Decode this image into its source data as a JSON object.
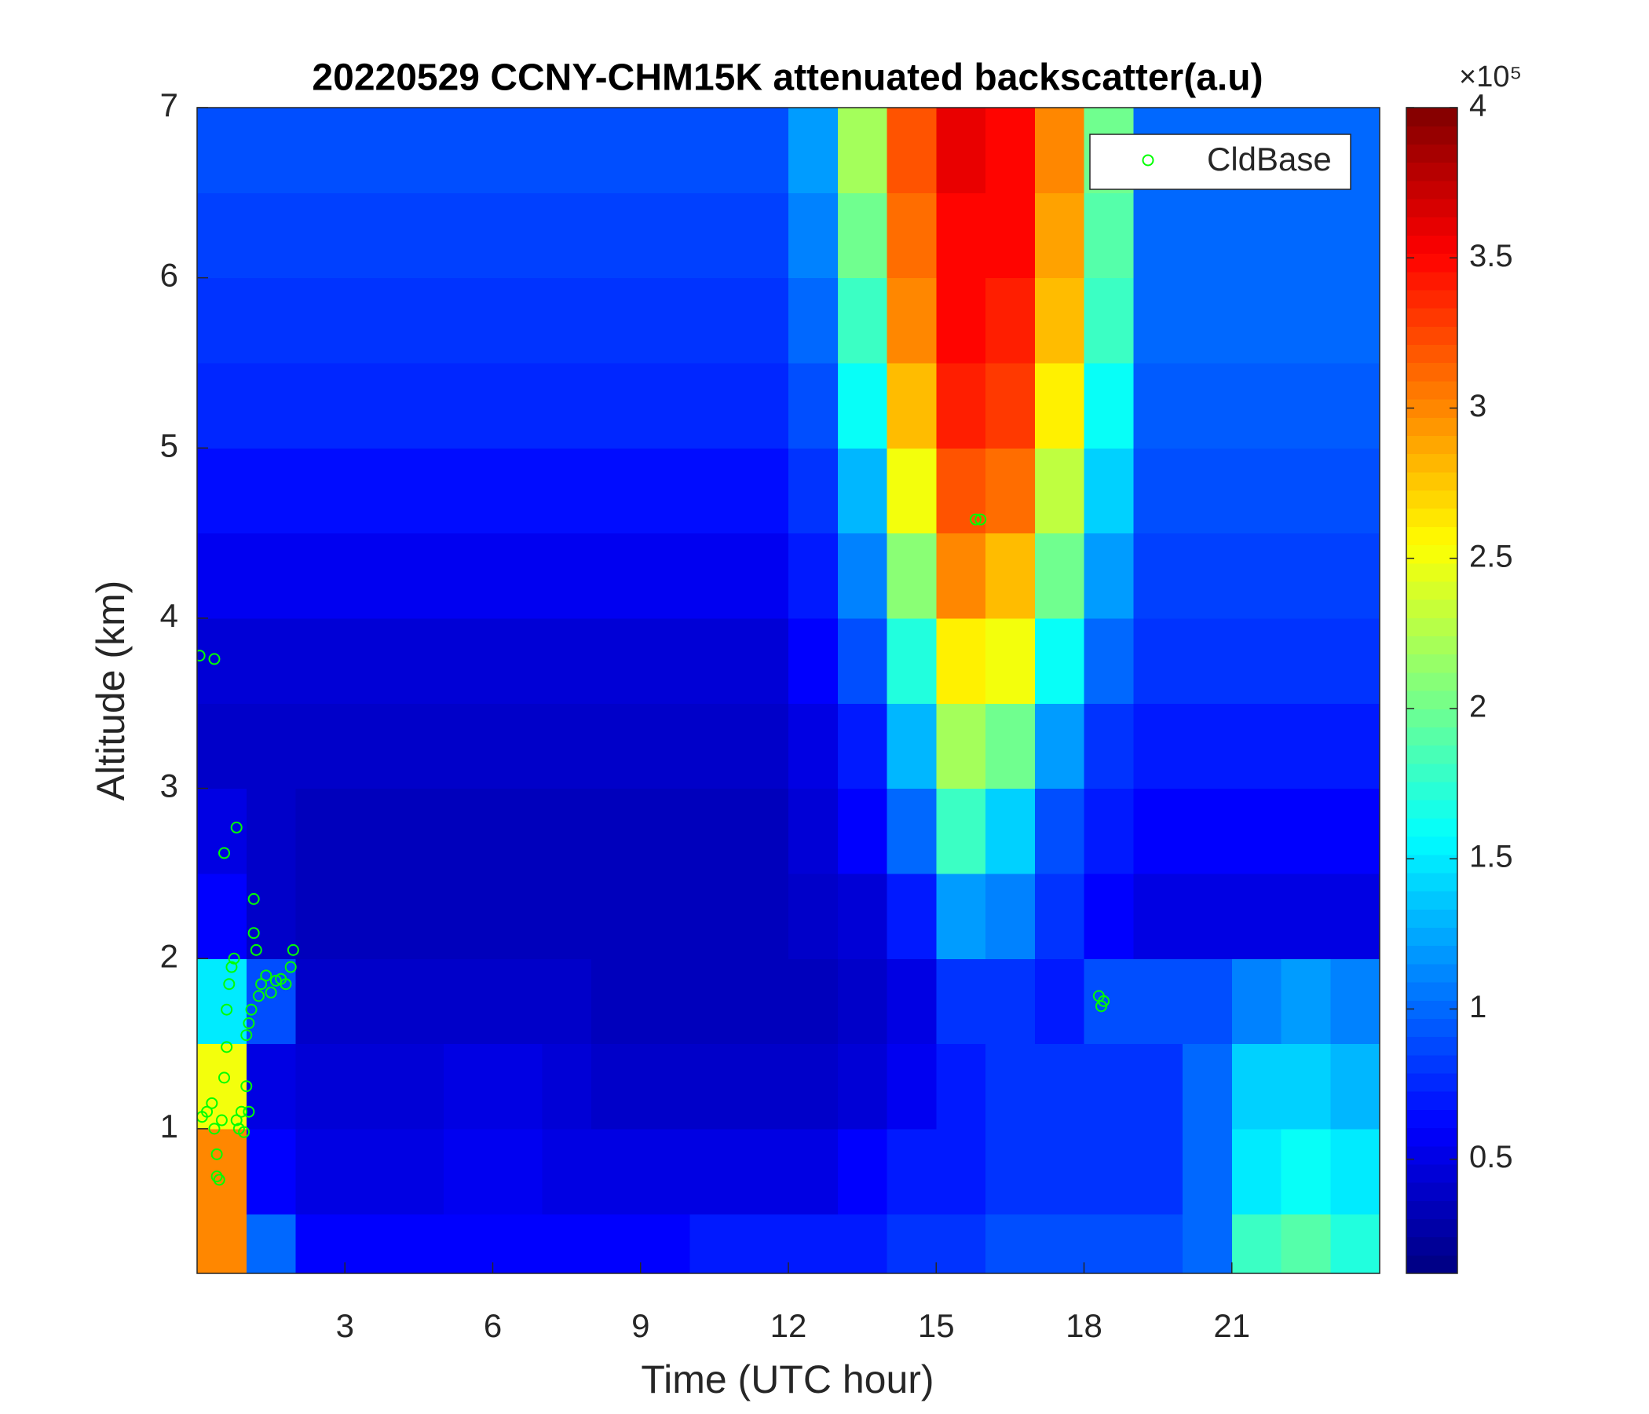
{
  "chart_data": {
    "type": "heatmap",
    "title": "20220529 CCNY-CHM15K attenuated backscatter(a.u)",
    "xlabel": "Time (UTC hour)",
    "ylabel": "Altitude (km)",
    "x": [
      0.5,
      1.5,
      2.5,
      3.5,
      4.5,
      5.5,
      6.5,
      7.5,
      8.5,
      9.5,
      10.5,
      11.5,
      12.5,
      13.5,
      14.5,
      15.5,
      16.5,
      17.5,
      18.5,
      19.5,
      20.5,
      21.5,
      22.5,
      23.5
    ],
    "y": [
      0.25,
      0.75,
      1.25,
      1.75,
      2.25,
      2.75,
      3.25,
      3.75,
      4.25,
      4.75,
      5.25,
      5.75,
      6.25,
      6.75
    ],
    "z": [
      [
        3.0,
        1.0,
        0.6,
        0.6,
        0.6,
        0.6,
        0.6,
        0.6,
        0.6,
        0.6,
        0.7,
        0.7,
        0.7,
        0.7,
        0.8,
        0.8,
        0.9,
        0.9,
        0.9,
        0.9,
        1.0,
        1.8,
        1.9,
        1.7
      ],
      [
        3.0,
        0.6,
        0.5,
        0.5,
        0.5,
        0.55,
        0.55,
        0.5,
        0.5,
        0.5,
        0.5,
        0.5,
        0.5,
        0.6,
        0.7,
        0.7,
        0.8,
        0.8,
        0.8,
        0.8,
        1.0,
        1.5,
        1.6,
        1.5
      ],
      [
        2.5,
        0.5,
        0.45,
        0.45,
        0.45,
        0.5,
        0.5,
        0.45,
        0.4,
        0.4,
        0.4,
        0.4,
        0.4,
        0.45,
        0.55,
        0.7,
        0.8,
        0.8,
        0.8,
        0.8,
        1.0,
        1.4,
        1.4,
        1.3
      ],
      [
        1.5,
        0.9,
        0.4,
        0.4,
        0.4,
        0.4,
        0.4,
        0.4,
        0.35,
        0.35,
        0.35,
        0.35,
        0.35,
        0.4,
        0.5,
        0.8,
        0.8,
        0.7,
        0.9,
        0.9,
        0.9,
        1.1,
        1.2,
        1.1
      ],
      [
        0.6,
        0.4,
        0.35,
        0.35,
        0.35,
        0.35,
        0.35,
        0.35,
        0.35,
        0.35,
        0.35,
        0.35,
        0.4,
        0.45,
        0.7,
        1.2,
        1.1,
        0.8,
        0.6,
        0.5,
        0.5,
        0.5,
        0.5,
        0.5
      ],
      [
        0.5,
        0.4,
        0.35,
        0.35,
        0.35,
        0.35,
        0.35,
        0.35,
        0.35,
        0.35,
        0.35,
        0.35,
        0.45,
        0.6,
        1.0,
        1.8,
        1.4,
        0.9,
        0.7,
        0.6,
        0.6,
        0.6,
        0.6,
        0.6
      ],
      [
        0.4,
        0.4,
        0.4,
        0.4,
        0.4,
        0.4,
        0.4,
        0.4,
        0.4,
        0.4,
        0.4,
        0.4,
        0.5,
        0.7,
        1.3,
        2.2,
        2.0,
        1.2,
        0.8,
        0.7,
        0.7,
        0.7,
        0.7,
        0.7
      ],
      [
        0.45,
        0.45,
        0.45,
        0.45,
        0.45,
        0.45,
        0.45,
        0.45,
        0.45,
        0.45,
        0.45,
        0.45,
        0.6,
        0.9,
        1.7,
        2.6,
        2.5,
        1.6,
        1.0,
        0.8,
        0.8,
        0.8,
        0.8,
        0.8
      ],
      [
        0.55,
        0.55,
        0.55,
        0.55,
        0.55,
        0.55,
        0.55,
        0.55,
        0.55,
        0.55,
        0.55,
        0.55,
        0.7,
        1.1,
        2.1,
        3.0,
        2.8,
        2.0,
        1.2,
        0.85,
        0.85,
        0.85,
        0.85,
        0.85
      ],
      [
        0.65,
        0.65,
        0.65,
        0.65,
        0.65,
        0.65,
        0.65,
        0.65,
        0.65,
        0.65,
        0.65,
        0.65,
        0.8,
        1.3,
        2.5,
        3.2,
        3.1,
        2.3,
        1.4,
        0.9,
        0.9,
        0.9,
        0.9,
        0.9
      ],
      [
        0.75,
        0.75,
        0.75,
        0.75,
        0.75,
        0.75,
        0.75,
        0.75,
        0.75,
        0.75,
        0.75,
        0.75,
        0.9,
        1.6,
        2.8,
        3.4,
        3.3,
        2.6,
        1.6,
        0.95,
        0.95,
        0.95,
        0.95,
        0.95
      ],
      [
        0.8,
        0.8,
        0.8,
        0.8,
        0.8,
        0.8,
        0.8,
        0.8,
        0.8,
        0.8,
        0.8,
        0.8,
        1.0,
        1.8,
        3.0,
        3.5,
        3.4,
        2.8,
        1.8,
        1.0,
        1.0,
        1.0,
        1.0,
        1.0
      ],
      [
        0.85,
        0.85,
        0.85,
        0.85,
        0.85,
        0.85,
        0.85,
        0.85,
        0.85,
        0.85,
        0.85,
        0.85,
        1.1,
        2.0,
        3.1,
        3.5,
        3.5,
        2.9,
        1.9,
        1.0,
        1.0,
        1.0,
        1.0,
        1.0
      ],
      [
        0.9,
        0.9,
        0.9,
        0.9,
        0.9,
        0.9,
        0.9,
        0.9,
        0.9,
        0.9,
        0.9,
        0.9,
        1.2,
        2.2,
        3.2,
        3.6,
        3.5,
        3.0,
        2.0,
        1.0,
        1.0,
        1.0,
        1.0,
        1.0
      ]
    ],
    "xlim": [
      0,
      24
    ],
    "ylim": [
      0.15,
      7
    ],
    "xticks": [
      3,
      6,
      9,
      12,
      15,
      18,
      21
    ],
    "yticks": [
      1,
      2,
      3,
      4,
      5,
      6,
      7
    ],
    "colormap": "jet",
    "clim": [
      0.12,
      4
    ],
    "cticks": [
      0.5,
      1,
      1.5,
      2,
      2.5,
      3,
      3.5,
      4
    ],
    "colorbar_exponent": "×10⁵",
    "legend": "upper right",
    "series": [
      {
        "name": "CldBase",
        "type": "scatter",
        "color": "#00ff00",
        "x": [
          0.05,
          0.35,
          0.1,
          0.2,
          0.3,
          0.35,
          0.4,
          0.4,
          0.45,
          0.5,
          0.55,
          0.6,
          0.6,
          0.65,
          0.7,
          0.55,
          0.75,
          0.8,
          0.85,
          0.8,
          0.9,
          0.95,
          1.0,
          1.05,
          1.0,
          1.05,
          1.1,
          1.15,
          1.15,
          1.2,
          1.25,
          1.3,
          1.4,
          1.5,
          1.6,
          1.7,
          1.8,
          1.9,
          1.95,
          15.8,
          15.9,
          18.3,
          18.35,
          18.4
        ],
        "y": [
          3.78,
          3.76,
          1.07,
          1.1,
          1.15,
          1.0,
          0.85,
          0.72,
          0.7,
          1.05,
          1.3,
          1.48,
          1.7,
          1.85,
          1.95,
          2.62,
          2.0,
          1.05,
          1.0,
          2.77,
          1.1,
          0.98,
          1.25,
          1.1,
          1.55,
          1.62,
          1.7,
          2.35,
          2.15,
          2.05,
          1.78,
          1.85,
          1.9,
          1.8,
          1.87,
          1.88,
          1.85,
          1.95,
          2.05,
          4.58,
          4.58,
          1.78,
          1.72,
          1.75
        ]
      }
    ]
  }
}
